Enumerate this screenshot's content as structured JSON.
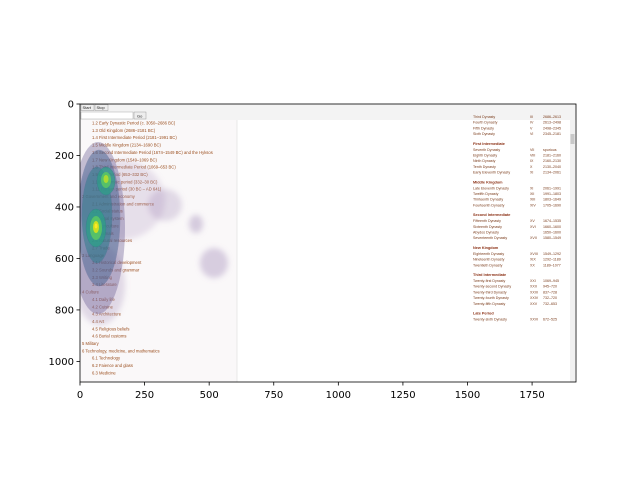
{
  "figure": {
    "x_ticks": [
      "0",
      "250",
      "500",
      "750",
      "1000",
      "1250",
      "1500",
      "1750"
    ],
    "y_ticks": [
      "0",
      "200",
      "400",
      "600",
      "800",
      "1000"
    ],
    "heatmap_colormap": "viridis",
    "frame_color": "#000000"
  },
  "screenshot": {
    "toolbar": {
      "start_label": "Start",
      "stop_label": "Stop",
      "go_label": "Go"
    },
    "toc": [
      "1.2  Early Dynastic Period (c. 3050–2686 BC)",
      "1.3  Old Kingdom (2686–2181 BC)",
      "1.4  First Intermediate Period (2181–1991 BC)",
      "1.5  Middle Kingdom (2134–1690 BC)",
      "1.6  Second Intermediate Period (1674–1549 BC) and the Hyksos",
      "1.7  New Kingdom (1549–1069 BC)",
      "1.8  Third Intermediate Period (1069–653 BC)",
      "1.9  Late Period (653–332 BC)",
      "1.10  Ptolemaic period (332–30 BC)",
      "1.11  Roman period (30 BC – AD 641)",
      "2  Government and economy",
      "2.1  Administration and commerce",
      "2.2  Social status",
      "2.3  Legal system",
      "2.4  Agriculture",
      "2.5  Animals",
      "2.6  Natural resources",
      "2.7  Trade",
      "3  Language",
      "3.1  Historical development",
      "3.2  Sounds and grammar",
      "3.3  Writing",
      "3.4  Literature",
      "4  Culture",
      "4.1  Daily life",
      "4.2  Cuisine",
      "4.3  Architecture",
      "4.4  Art",
      "4.5  Religious beliefs",
      "4.6  Burial customs",
      "5  Military",
      "6  Technology, medicine, and mathematics",
      "6.1  Technology",
      "6.2  Faience and glass",
      "6.3  Medicine"
    ],
    "dynasty_table": [
      {
        "heading": "",
        "rows": [
          [
            "Third Dynasty",
            "III",
            "2686–2613"
          ],
          [
            "Fourth Dynasty",
            "IV",
            "2613–2498"
          ],
          [
            "Fifth Dynasty",
            "V",
            "2498–2345"
          ],
          [
            "Sixth Dynasty",
            "VI",
            "2345–2181"
          ]
        ]
      },
      {
        "heading": "First Intermediate",
        "rows": [
          [
            "Seventh Dynasty",
            "VII",
            "spurious"
          ],
          [
            "Eighth Dynasty",
            "VIII",
            "2181–2160"
          ],
          [
            "Ninth Dynasty",
            "IX",
            "2160–2130"
          ],
          [
            "Tenth Dynasty",
            "X",
            "2130–2040"
          ],
          [
            "Early Eleventh Dynasty",
            "XI",
            "2134–2061"
          ]
        ]
      },
      {
        "heading": "Middle Kingdom",
        "rows": [
          [
            "Late Eleventh Dynasty",
            "XI",
            "2061–1991"
          ],
          [
            "Twelfth Dynasty",
            "XII",
            "1991–1803"
          ],
          [
            "Thirteenth Dynasty",
            "XIII",
            "1803–1649"
          ],
          [
            "Fourteenth Dynasty",
            "XIV",
            "1705–1690"
          ]
        ]
      },
      {
        "heading": "Second Intermediate",
        "rows": [
          [
            "Fifteenth Dynasty",
            "XV",
            "1674–1535"
          ],
          [
            "Sixteenth Dynasty",
            "XVI",
            "1660–1600"
          ],
          [
            "Abydos Dynasty",
            "",
            "1650–1600"
          ],
          [
            "Seventeenth Dynasty",
            "XVII",
            "1580–1549"
          ]
        ]
      },
      {
        "heading": "New Kingdom",
        "rows": [
          [
            "Eighteenth Dynasty",
            "XVIII",
            "1549–1292"
          ],
          [
            "Nineteenth Dynasty",
            "XIX",
            "1292–1189"
          ],
          [
            "Twentieth Dynasty",
            "XX",
            "1189–1077"
          ]
        ]
      },
      {
        "heading": "Third Intermediate",
        "rows": [
          [
            "Twenty-first Dynasty",
            "XXI",
            "1069–945"
          ],
          [
            "Twenty-second Dynasty",
            "XXII",
            "945–720"
          ],
          [
            "Twenty-third Dynasty",
            "XXIII",
            "837–728"
          ],
          [
            "Twenty-fourth Dynasty",
            "XXIV",
            "732–720"
          ],
          [
            "Twenty-fifth Dynasty",
            "XXV",
            "732–653"
          ]
        ]
      },
      {
        "heading": "Late Period",
        "rows": [
          [
            "Twenty-sixth Dynasty",
            "XXVI",
            "672–525"
          ]
        ]
      }
    ]
  }
}
